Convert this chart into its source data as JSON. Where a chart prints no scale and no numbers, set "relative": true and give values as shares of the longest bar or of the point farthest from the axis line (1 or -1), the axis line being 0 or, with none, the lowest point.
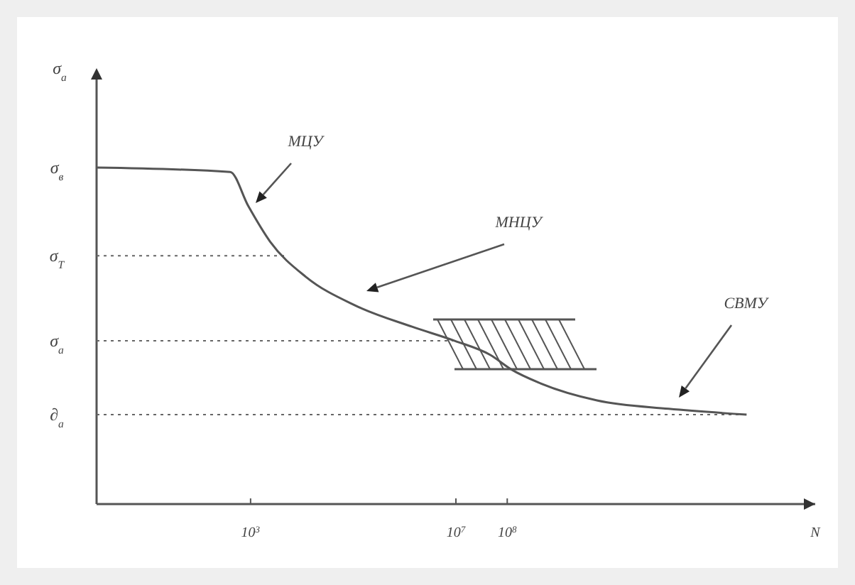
{
  "chart_data": {
    "type": "line",
    "relative": true,
    "log": "x",
    "xlim": [
      1,
      100000000000000
    ],
    "xticks": [
      {
        "value": 1000,
        "label": "10$^{3}$"
      },
      {
        "value": 10000000,
        "label": "10$^{7}$"
      },
      {
        "value": 100000000,
        "label": "10$^{8}$"
      }
    ],
    "xlabel": "N",
    "marker": "none",
    "line_style": "solid",
    "series": [
      {
        "color": "#555555",
        "x": [
          1,
          400,
          900,
          2400,
          12000,
          110000,
          1400000,
          9500000,
          47000000,
          120000000,
          440000000,
          5600000000,
          140000000000,
          4600000000000
        ],
        "values": [
          1,
          0.987,
          0.886,
          0.78,
          0.675,
          0.59,
          0.527,
          0.485,
          0.443,
          0.4,
          0.359,
          0.308,
          0.283,
          0.266
        ]
      }
    ],
    "ref_lines": [
      {
        "axis": "y",
        "value": 0.738,
        "label": "σ$_{T}$",
        "line_style": "dotted"
      },
      {
        "axis": "y",
        "value": 0.485,
        "label": "σ$_{а}$",
        "line_style": "dotted"
      },
      {
        "axis": "y",
        "value": 0.266,
        "label": "∂$_{а}$",
        "line_style": "dotted"
      }
    ],
    "annotations": [
      "σ$_{в}$",
      "МЦУ",
      "МНЦУ",
      "СВМУ",
      "σ$_{а}$"
    ]
  }
}
